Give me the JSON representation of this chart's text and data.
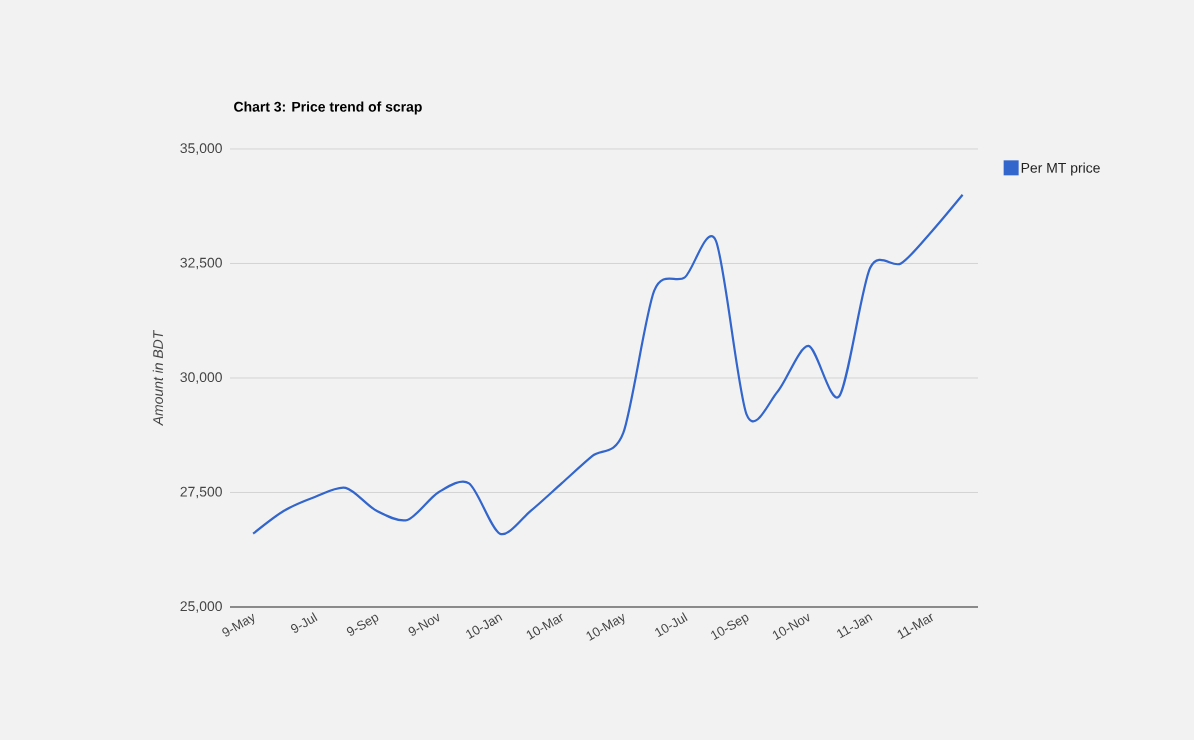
{
  "chart_data": {
    "type": "line",
    "title": "Chart 3: Price trend of scrap",
    "ylabel": "Amount in BDT",
    "categories": [
      "9-May",
      null,
      "9-Jul",
      null,
      "9-Sep",
      null,
      "9-Nov",
      null,
      "10-Jan",
      null,
      "10-Mar",
      null,
      "10-May",
      null,
      "10-Jul",
      null,
      "10-Sep",
      null,
      "10-Nov",
      null,
      "11-Jan",
      null,
      "11-Mar",
      null
    ],
    "series": [
      {
        "name": "Per MT price",
        "color": "#3366cc",
        "values": [
          26600,
          27100,
          27400,
          27600,
          27100,
          26900,
          27500,
          27700,
          26600,
          27100,
          27700,
          28300,
          28800,
          31900,
          32200,
          33000,
          29200,
          29700,
          30700,
          29600,
          32400,
          32500,
          33200,
          34000
        ]
      }
    ],
    "ylim": [
      25000,
      35000
    ],
    "yticks": [
      {
        "value": 25000,
        "label": "25,000"
      },
      {
        "value": 27500,
        "label": "27,500"
      },
      {
        "value": 30000,
        "label": "30,000"
      },
      {
        "value": 32500,
        "label": "32,500"
      },
      {
        "value": 35000,
        "label": "35,000"
      }
    ],
    "grid": "y",
    "legend": "top right",
    "marker": "none",
    "line_style": "solid"
  }
}
